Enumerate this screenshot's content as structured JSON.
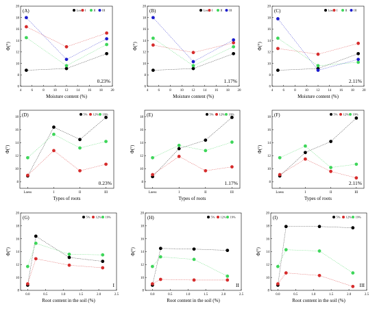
{
  "colors": {
    "loess": "#000000",
    "I": "#d62c2c",
    "II": "#3ed65a",
    "III": "#1c1ccc",
    "5%": "#000000",
    "12%": "#d62c2c",
    "19%": "#3ed65a"
  },
  "chart_data": [
    {
      "type": "scatter",
      "label": "(A)",
      "annotation": "0.23%",
      "xlabel": "Moisture content (%)",
      "ylabel": "Φ(°)",
      "xlim": [
        4,
        20
      ],
      "ylim": [
        6,
        20
      ],
      "xticks": [
        4,
        6,
        8,
        10,
        12,
        14,
        16,
        18,
        20
      ],
      "yticks": [
        6,
        8,
        10,
        12,
        14,
        16,
        18,
        20
      ],
      "x": [
        5,
        12,
        19
      ],
      "series": [
        {
          "name": "Loess",
          "color": "loess",
          "values": [
            8.8,
            9.1,
            11.7
          ]
        },
        {
          "name": "I",
          "color": "I",
          "values": [
            16.4,
            12.9,
            15.3
          ]
        },
        {
          "name": "II",
          "color": "II",
          "values": [
            14.5,
            9.6,
            13.3
          ]
        },
        {
          "name": "III",
          "color": "III",
          "values": [
            18.0,
            10.7,
            14.3
          ]
        }
      ]
    },
    {
      "type": "scatter",
      "label": "(B)",
      "annotation": "1.17%",
      "xlabel": "Moisture content (%)",
      "ylabel": "Φ(°)",
      "xlim": [
        4,
        20
      ],
      "ylim": [
        6,
        20
      ],
      "xticks": [
        4,
        6,
        8,
        10,
        12,
        14,
        16,
        18,
        20
      ],
      "yticks": [
        6,
        8,
        10,
        12,
        14,
        16,
        18,
        20
      ],
      "x": [
        5,
        12,
        19
      ],
      "series": [
        {
          "name": "Loess",
          "color": "loess",
          "values": [
            8.8,
            9.1,
            11.7
          ]
        },
        {
          "name": "I",
          "color": "I",
          "values": [
            13.2,
            11.9,
            13.6
          ]
        },
        {
          "name": "II",
          "color": "II",
          "values": [
            14.4,
            9.6,
            12.9
          ]
        },
        {
          "name": "III",
          "color": "III",
          "values": [
            18.0,
            10.3,
            14.1
          ]
        }
      ]
    },
    {
      "type": "scatter",
      "label": "(C)",
      "annotation": "2.11%",
      "xlabel": "Moisture content (%)",
      "ylabel": "Φ(°)",
      "xlim": [
        4,
        20
      ],
      "ylim": [
        6,
        20
      ],
      "xticks": [
        4,
        6,
        8,
        10,
        12,
        14,
        16,
        18,
        20
      ],
      "yticks": [
        6,
        8,
        10,
        12,
        14,
        16,
        18,
        20
      ],
      "x": [
        5,
        12,
        19
      ],
      "series": [
        {
          "name": "Loess",
          "color": "loess",
          "values": [
            8.8,
            9.1,
            11.7
          ]
        },
        {
          "name": "I",
          "color": "I",
          "values": [
            12.6,
            11.6,
            13.5
          ]
        },
        {
          "name": "II",
          "color": "II",
          "values": [
            14.4,
            9.6,
            10.2
          ]
        },
        {
          "name": "III",
          "color": "III",
          "values": [
            17.8,
            8.8,
            10.7
          ]
        }
      ]
    },
    {
      "type": "scatter",
      "label": "(D)",
      "annotation": "0.23%",
      "xlabel": "Types of roots",
      "ylabel": "Φ(°)",
      "categories": [
        "Loess",
        "I",
        "II",
        "III"
      ],
      "ylim": [
        7,
        19
      ],
      "yticks": [
        8,
        10,
        12,
        14,
        16,
        18
      ],
      "series": [
        {
          "name": "5%",
          "color": "5%",
          "values": [
            8.9,
            16.4,
            14.5,
            17.9
          ]
        },
        {
          "name": "12%",
          "color": "12%",
          "values": [
            9.0,
            12.8,
            9.7,
            10.7
          ]
        },
        {
          "name": "19%",
          "color": "19%",
          "values": [
            11.7,
            15.3,
            13.2,
            14.2
          ]
        }
      ]
    },
    {
      "type": "scatter",
      "label": "(E)",
      "annotation": "1.17%",
      "xlabel": "Types of roots",
      "ylabel": "Φ(°)",
      "categories": [
        "Loess",
        "I",
        "II",
        "III"
      ],
      "ylim": [
        7,
        19
      ],
      "yticks": [
        8,
        10,
        12,
        14,
        16,
        18
      ],
      "series": [
        {
          "name": "5%",
          "color": "5%",
          "values": [
            8.8,
            13.1,
            14.4,
            17.9
          ]
        },
        {
          "name": "12%",
          "color": "12%",
          "values": [
            9.1,
            11.9,
            9.7,
            10.3
          ]
        },
        {
          "name": "19%",
          "color": "19%",
          "values": [
            11.7,
            13.6,
            12.8,
            14.1
          ]
        }
      ]
    },
    {
      "type": "scatter",
      "label": "(F)",
      "annotation": "2.11%",
      "xlabel": "Types of roots",
      "ylabel": "Φ(°)",
      "categories": [
        "Loess",
        "I",
        "II",
        "III"
      ],
      "ylim": [
        7,
        19
      ],
      "yticks": [
        8,
        10,
        12,
        14,
        16,
        18
      ],
      "series": [
        {
          "name": "5%",
          "color": "5%",
          "values": [
            8.9,
            12.5,
            14.2,
            17.8
          ]
        },
        {
          "name": "12%",
          "color": "12%",
          "values": [
            9.1,
            11.5,
            9.6,
            8.6
          ]
        },
        {
          "name": "19%",
          "color": "19%",
          "values": [
            11.7,
            13.5,
            10.2,
            10.7
          ]
        }
      ]
    },
    {
      "type": "scatter",
      "label": "(G)",
      "annotation": "I",
      "xlabel": "Root content in the soil (%)",
      "ylabel": "Φ(°)",
      "xlim": [
        -0.2,
        2.5
      ],
      "ylim": [
        8,
        20
      ],
      "xticks": [
        0.0,
        0.5,
        1.0,
        1.5,
        2.0,
        2.5
      ],
      "yticks": [
        8,
        10,
        12,
        14,
        16,
        18,
        20
      ],
      "x": [
        0,
        0.23,
        1.17,
        2.11
      ],
      "series": [
        {
          "name": "5%",
          "color": "5%",
          "values": [
            8.8,
            16.4,
            13.1,
            12.5
          ]
        },
        {
          "name": "12%",
          "color": "12%",
          "values": [
            9.0,
            12.9,
            11.9,
            11.5
          ]
        },
        {
          "name": "19%",
          "color": "19%",
          "values": [
            11.7,
            15.3,
            13.6,
            13.5
          ]
        }
      ]
    },
    {
      "type": "scatter",
      "label": "(H)",
      "annotation": "II",
      "xlabel": "Root content in the soil (%)",
      "ylabel": "Φ(°)",
      "xlim": [
        -0.2,
        2.5
      ],
      "ylim": [
        8,
        20
      ],
      "xticks": [
        0.0,
        0.5,
        1.0,
        1.5,
        2.0,
        2.5
      ],
      "yticks": [
        8,
        10,
        12,
        14,
        16,
        18,
        20
      ],
      "x": [
        0,
        0.23,
        1.17,
        2.11
      ],
      "series": [
        {
          "name": "5%",
          "color": "5%",
          "values": [
            8.8,
            14.5,
            14.4,
            14.2
          ]
        },
        {
          "name": "12%",
          "color": "12%",
          "values": [
            9.0,
            9.7,
            9.6,
            9.6
          ]
        },
        {
          "name": "19%",
          "color": "19%",
          "values": [
            11.7,
            13.2,
            12.8,
            10.2
          ]
        }
      ]
    },
    {
      "type": "scatter",
      "label": "(I)",
      "annotation": "III",
      "xlabel": "Root content in the soil (%)",
      "ylabel": "Φ(°)",
      "xlim": [
        -0.2,
        2.5
      ],
      "ylim": [
        8,
        20
      ],
      "xticks": [
        0.0,
        0.5,
        1.0,
        1.5,
        2.0,
        2.5
      ],
      "yticks": [
        8,
        10,
        12,
        14,
        16,
        18,
        20
      ],
      "x": [
        0,
        0.23,
        1.17,
        2.11
      ],
      "series": [
        {
          "name": "5%",
          "color": "5%",
          "values": [
            8.8,
            17.9,
            17.9,
            17.7
          ]
        },
        {
          "name": "12%",
          "color": "12%",
          "values": [
            9.0,
            10.7,
            10.3,
            8.6
          ]
        },
        {
          "name": "19%",
          "color": "19%",
          "values": [
            11.7,
            14.3,
            14.1,
            10.7
          ]
        }
      ]
    }
  ]
}
